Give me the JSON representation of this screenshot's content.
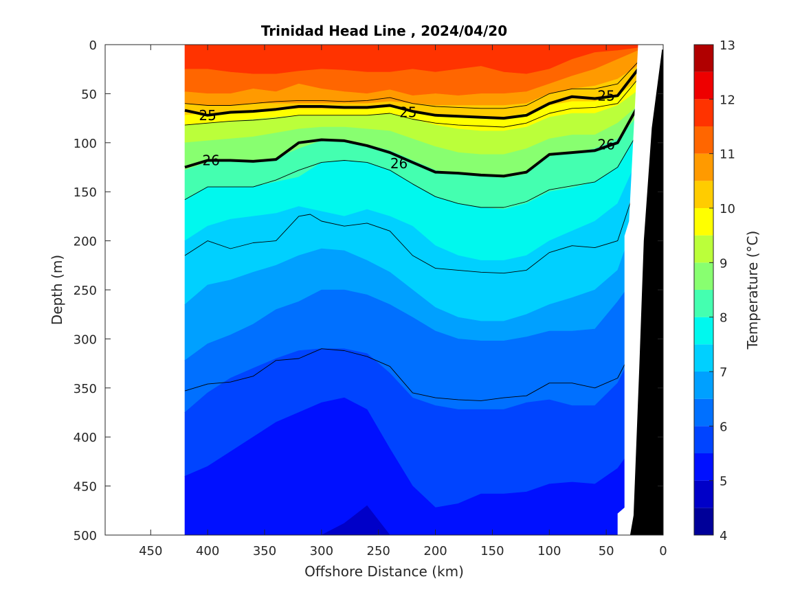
{
  "chart_data": {
    "type": "contour",
    "title": "Trinidad Head Line , 2024/04/20",
    "xlabel": "Offshore Distance (km)",
    "ylabel": "Depth (m)",
    "xlim": [
      490,
      0
    ],
    "ylim": [
      0,
      500
    ],
    "x_reversed": true,
    "y_reversed": true,
    "x_ticks": [
      450,
      400,
      350,
      300,
      250,
      200,
      150,
      100,
      50,
      0
    ],
    "y_ticks": [
      0,
      50,
      100,
      150,
      200,
      250,
      300,
      350,
      400,
      450,
      500
    ],
    "colorbar": {
      "label": "Temperature (°C)",
      "range": [
        4,
        13
      ],
      "ticks": [
        4,
        5,
        6,
        7,
        8,
        9,
        10,
        11,
        12,
        13
      ],
      "levels": [
        {
          "lo": 4.0,
          "hi": 4.5,
          "color": "#000099"
        },
        {
          "lo": 4.5,
          "hi": 5.0,
          "color": "#0000c8"
        },
        {
          "lo": 5.0,
          "hi": 5.5,
          "color": "#0010ff"
        },
        {
          "lo": 5.5,
          "hi": 6.0,
          "color": "#0044ff"
        },
        {
          "lo": 6.0,
          "hi": 6.5,
          "color": "#0070ff"
        },
        {
          "lo": 6.5,
          "hi": 7.0,
          "color": "#00a0ff"
        },
        {
          "lo": 7.0,
          "hi": 7.5,
          "color": "#00d0ff"
        },
        {
          "lo": 7.5,
          "hi": 8.0,
          "color": "#00f8ee"
        },
        {
          "lo": 8.0,
          "hi": 8.5,
          "color": "#44ffb0"
        },
        {
          "lo": 8.5,
          "hi": 9.0,
          "color": "#88ff70"
        },
        {
          "lo": 9.0,
          "hi": 9.5,
          "color": "#bbff3a"
        },
        {
          "lo": 9.5,
          "hi": 10.0,
          "color": "#ffff00"
        },
        {
          "lo": 10.0,
          "hi": 10.5,
          "color": "#ffcc00"
        },
        {
          "lo": 10.5,
          "hi": 11.0,
          "color": "#ff9a00"
        },
        {
          "lo": 11.0,
          "hi": 11.5,
          "color": "#ff6600"
        },
        {
          "lo": 11.5,
          "hi": 12.0,
          "color": "#ff3300"
        },
        {
          "lo": 12.0,
          "hi": 12.5,
          "color": "#ee0000"
        },
        {
          "lo": 12.5,
          "hi": 13.0,
          "color": "#b00000"
        }
      ]
    },
    "data_extent_km": [
      420,
      20
    ],
    "stations_x": [
      420,
      400,
      380,
      360,
      340,
      320,
      300,
      280,
      260,
      240,
      220,
      200,
      180,
      160,
      140,
      120,
      100,
      80,
      60,
      40,
      20
    ],
    "isotherm_depths": [
      {
        "t": 11.5,
        "d": [
          25,
          25,
          28,
          30,
          30,
          27,
          25,
          26,
          28,
          28,
          25,
          28,
          25,
          22,
          28,
          30,
          25,
          15,
          8,
          6,
          3
        ]
      },
      {
        "t": 11.0,
        "d": [
          48,
          50,
          50,
          45,
          48,
          40,
          45,
          48,
          50,
          46,
          52,
          50,
          52,
          50,
          50,
          48,
          40,
          32,
          25,
          15,
          5
        ]
      },
      {
        "t": 10.5,
        "d": [
          60,
          62,
          62,
          60,
          60,
          60,
          60,
          60,
          60,
          58,
          60,
          62,
          62,
          62,
          62,
          60,
          50,
          45,
          42,
          35,
          20
        ]
      },
      {
        "t": 10.0,
        "d": [
          72,
          70,
          70,
          68,
          66,
          66,
          66,
          66,
          66,
          64,
          68,
          72,
          74,
          74,
          74,
          70,
          62,
          58,
          58,
          52,
          35
        ]
      },
      {
        "t": 9.5,
        "d": [
          82,
          80,
          78,
          76,
          74,
          72,
          72,
          72,
          72,
          70,
          76,
          82,
          86,
          88,
          88,
          84,
          74,
          70,
          70,
          62,
          45
        ]
      },
      {
        "t": 9.0,
        "d": [
          100,
          98,
          96,
          94,
          90,
          86,
          84,
          84,
          86,
          88,
          96,
          104,
          110,
          112,
          112,
          106,
          96,
          92,
          92,
          80,
          60
        ]
      },
      {
        "t": 8.5,
        "d": [
          128,
          120,
          118,
          118,
          116,
          106,
          98,
          98,
          102,
          108,
          118,
          128,
          132,
          134,
          136,
          132,
          114,
          110,
          106,
          96,
          70
        ]
      },
      {
        "t": 8.0,
        "d": [
          158,
          145,
          145,
          145,
          140,
          135,
          120,
          118,
          120,
          128,
          142,
          155,
          162,
          166,
          168,
          162,
          150,
          146,
          140,
          125,
          85
        ]
      },
      {
        "t": 7.5,
        "d": [
          200,
          185,
          178,
          175,
          172,
          165,
          170,
          175,
          168,
          175,
          185,
          205,
          215,
          220,
          220,
          215,
          200,
          190,
          180,
          162,
          110
        ]
      },
      {
        "t": 7.0,
        "d": [
          265,
          245,
          240,
          232,
          225,
          215,
          208,
          210,
          220,
          232,
          250,
          268,
          278,
          282,
          282,
          275,
          265,
          258,
          250,
          230,
          165
        ]
      },
      {
        "t": 6.5,
        "d": [
          322,
          305,
          296,
          285,
          270,
          262,
          250,
          250,
          255,
          265,
          278,
          292,
          300,
          302,
          302,
          298,
          292,
          292,
          290,
          262,
          230
        ]
      },
      {
        "t": 6.0,
        "d": [
          375,
          355,
          340,
          330,
          320,
          312,
          310,
          310,
          315,
          335,
          360,
          368,
          372,
          372,
          372,
          365,
          362,
          368,
          368,
          345,
          300
        ]
      },
      {
        "t": 5.5,
        "d": [
          440,
          430,
          415,
          400,
          385,
          375,
          365,
          360,
          372,
          412,
          450,
          472,
          468,
          458,
          458,
          456,
          448,
          446,
          448,
          432,
          400
        ]
      },
      {
        "t": 5.0,
        "d": [
          500,
          500,
          500,
          500,
          500,
          500,
          500,
          488,
          470,
          500,
          500,
          500,
          500,
          500,
          500,
          500,
          500,
          500,
          500,
          500,
          500
        ]
      },
      {
        "t": 4.5,
        "d": [
          500,
          500,
          500,
          500,
          500,
          500,
          500,
          500,
          500,
          500,
          500,
          500,
          500,
          500,
          500,
          500,
          500,
          500,
          500,
          500,
          500
        ]
      }
    ],
    "density_contours": [
      {
        "label": "25",
        "bold": true,
        "pts": [
          [
            420,
            67
          ],
          [
            400,
            72
          ],
          [
            380,
            69
          ],
          [
            360,
            68
          ],
          [
            340,
            66
          ],
          [
            320,
            63
          ],
          [
            300,
            63
          ],
          [
            280,
            64
          ],
          [
            260,
            64
          ],
          [
            240,
            62
          ],
          [
            220,
            68
          ],
          [
            200,
            72
          ],
          [
            180,
            73
          ],
          [
            160,
            74
          ],
          [
            140,
            75
          ],
          [
            120,
            72
          ],
          [
            100,
            60
          ],
          [
            80,
            53
          ],
          [
            60,
            55
          ],
          [
            40,
            52
          ],
          [
            20,
            22
          ]
        ]
      },
      {
        "label": "26",
        "bold": true,
        "pts": [
          [
            420,
            125
          ],
          [
            400,
            118
          ],
          [
            380,
            118
          ],
          [
            360,
            119
          ],
          [
            340,
            117
          ],
          [
            320,
            100
          ],
          [
            300,
            97
          ],
          [
            280,
            98
          ],
          [
            260,
            103
          ],
          [
            240,
            110
          ],
          [
            220,
            120
          ],
          [
            200,
            130
          ],
          [
            180,
            131
          ],
          [
            160,
            133
          ],
          [
            140,
            134
          ],
          [
            120,
            130
          ],
          [
            100,
            112
          ],
          [
            80,
            110
          ],
          [
            60,
            108
          ],
          [
            40,
            100
          ],
          [
            20,
            58
          ]
        ]
      },
      {
        "label": "",
        "bold": false,
        "pts": [
          [
            420,
            60
          ],
          [
            400,
            62
          ],
          [
            380,
            62
          ],
          [
            360,
            60
          ],
          [
            340,
            58
          ],
          [
            320,
            57
          ],
          [
            300,
            57
          ],
          [
            280,
            58
          ],
          [
            260,
            57
          ],
          [
            240,
            54
          ],
          [
            220,
            60
          ],
          [
            200,
            63
          ],
          [
            180,
            64
          ],
          [
            160,
            65
          ],
          [
            140,
            65
          ],
          [
            120,
            62
          ],
          [
            100,
            50
          ],
          [
            80,
            45
          ],
          [
            60,
            45
          ],
          [
            40,
            40
          ],
          [
            20,
            15
          ]
        ]
      },
      {
        "label": "",
        "bold": false,
        "pts": [
          [
            420,
            82
          ],
          [
            400,
            80
          ],
          [
            380,
            78
          ],
          [
            360,
            77
          ],
          [
            340,
            75
          ],
          [
            320,
            72
          ],
          [
            300,
            72
          ],
          [
            280,
            72
          ],
          [
            260,
            72
          ],
          [
            240,
            70
          ],
          [
            220,
            76
          ],
          [
            200,
            80
          ],
          [
            180,
            82
          ],
          [
            160,
            83
          ],
          [
            140,
            84
          ],
          [
            120,
            80
          ],
          [
            100,
            70
          ],
          [
            80,
            65
          ],
          [
            60,
            64
          ],
          [
            40,
            60
          ],
          [
            20,
            32
          ]
        ]
      },
      {
        "label": "",
        "bold": false,
        "pts": [
          [
            420,
            158
          ],
          [
            400,
            145
          ],
          [
            380,
            145
          ],
          [
            360,
            145
          ],
          [
            340,
            138
          ],
          [
            320,
            128
          ],
          [
            300,
            120
          ],
          [
            280,
            118
          ],
          [
            260,
            120
          ],
          [
            240,
            128
          ],
          [
            220,
            142
          ],
          [
            200,
            155
          ],
          [
            180,
            162
          ],
          [
            160,
            166
          ],
          [
            140,
            166
          ],
          [
            120,
            160
          ],
          [
            100,
            148
          ],
          [
            80,
            144
          ],
          [
            60,
            140
          ],
          [
            40,
            125
          ],
          [
            20,
            85
          ]
        ]
      },
      {
        "label": "",
        "bold": false,
        "pts": [
          [
            420,
            215
          ],
          [
            400,
            200
          ],
          [
            380,
            208
          ],
          [
            360,
            202
          ],
          [
            340,
            200
          ],
          [
            320,
            175
          ],
          [
            310,
            173
          ],
          [
            300,
            180
          ],
          [
            280,
            185
          ],
          [
            260,
            182
          ],
          [
            240,
            190
          ],
          [
            220,
            215
          ],
          [
            200,
            228
          ],
          [
            180,
            230
          ],
          [
            160,
            232
          ],
          [
            140,
            233
          ],
          [
            120,
            230
          ],
          [
            100,
            212
          ],
          [
            80,
            205
          ],
          [
            60,
            207
          ],
          [
            40,
            200
          ],
          [
            20,
            130
          ]
        ]
      },
      {
        "label": "",
        "bold": false,
        "pts": [
          [
            420,
            353
          ],
          [
            400,
            346
          ],
          [
            380,
            344
          ],
          [
            360,
            338
          ],
          [
            340,
            322
          ],
          [
            320,
            320
          ],
          [
            310,
            315
          ],
          [
            300,
            310
          ],
          [
            280,
            312
          ],
          [
            260,
            318
          ],
          [
            240,
            328
          ],
          [
            220,
            355
          ],
          [
            200,
            360
          ],
          [
            180,
            362
          ],
          [
            160,
            363
          ],
          [
            140,
            360
          ],
          [
            120,
            358
          ],
          [
            100,
            345
          ],
          [
            80,
            345
          ],
          [
            60,
            350
          ],
          [
            40,
            340
          ],
          [
            20,
            295
          ]
        ]
      }
    ],
    "contour_labels": [
      {
        "text": "25",
        "x": 400,
        "y": 72
      },
      {
        "text": "25",
        "x": 224,
        "y": 69
      },
      {
        "text": "25",
        "x": 50,
        "y": 52
      },
      {
        "text": "26",
        "x": 397,
        "y": 118
      },
      {
        "text": "26",
        "x": 232,
        "y": 121
      },
      {
        "text": "26",
        "x": 50,
        "y": 102
      }
    ]
  }
}
